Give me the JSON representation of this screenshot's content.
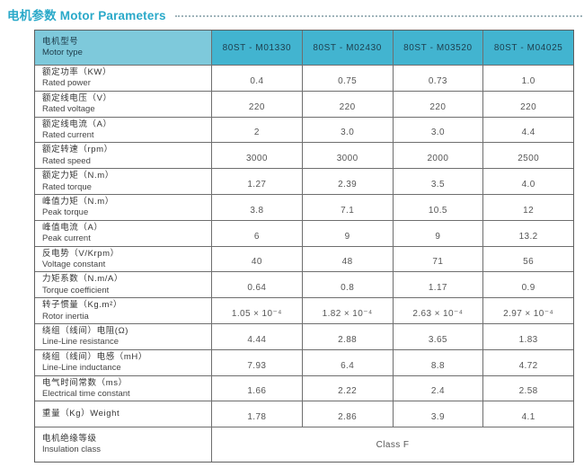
{
  "page_title": "电机参数 Motor Parameters",
  "table": {
    "header": {
      "motor_type_zh": "电机型号",
      "motor_type_en": "Motor type",
      "models": [
        "80ST - M01330",
        "80ST - M02430",
        "80ST - M03520",
        "80ST - M04025"
      ]
    },
    "rows": [
      {
        "zh": "额定功率（KW）",
        "en": "Rated power",
        "values": [
          "0.4",
          "0.75",
          "0.73",
          "1.0"
        ]
      },
      {
        "zh": "额定线电压（V）",
        "en": "Rated voltage",
        "values": [
          "220",
          "220",
          "220",
          "220"
        ]
      },
      {
        "zh": "额定线电流（A）",
        "en": "Rated current",
        "values": [
          "2",
          "3.0",
          "3.0",
          "4.4"
        ]
      },
      {
        "zh": "额定转速（rpm）",
        "en": "Rated speed",
        "values": [
          "3000",
          "3000",
          "2000",
          "2500"
        ]
      },
      {
        "zh": "额定力矩（N.m）",
        "en": "Rated torque",
        "values": [
          "1.27",
          "2.39",
          "3.5",
          "4.0"
        ]
      },
      {
        "zh": "峰值力矩（N.m）",
        "en": "Peak torque",
        "values": [
          "3.8",
          "7.1",
          "10.5",
          "12"
        ]
      },
      {
        "zh": "峰值电流（A）",
        "en": "Peak current",
        "values": [
          "6",
          "9",
          "9",
          "13.2"
        ]
      },
      {
        "zh": "反电势（V/Krpm）",
        "en": "Voltage constant",
        "values": [
          "40",
          "48",
          "71",
          "56"
        ]
      },
      {
        "zh": "力矩系数（N.m/A）",
        "en": "Torque coefficient",
        "values": [
          "0.64",
          "0.8",
          "1.17",
          "0.9"
        ]
      },
      {
        "zh": "转子惯量（Kg.m²）",
        "en": "Rotor inertia",
        "values": [
          "1.05 × 10⁻⁴",
          "1.82 × 10⁻⁴",
          "2.63 × 10⁻⁴",
          "2.97 × 10⁻⁴"
        ]
      },
      {
        "zh": "绕组（线间）电阻(Ω)",
        "en": "Line-Line resistance",
        "values": [
          "4.44",
          "2.88",
          "3.65",
          "1.83"
        ]
      },
      {
        "zh": "绕组（线间）电感（mH）",
        "en": "Line-Line inductance",
        "values": [
          "7.93",
          "6.4",
          "8.8",
          "4.72"
        ]
      },
      {
        "zh": "电气时间常数（ms）",
        "en": "Electrical time constant",
        "values": [
          "1.66",
          "2.22",
          "2.4",
          "2.58"
        ]
      },
      {
        "zh": "重量（Kg）Weight",
        "en": "",
        "values": [
          "1.78",
          "2.86",
          "3.9",
          "4.1"
        ]
      }
    ],
    "footer_row": {
      "zh": "电机绝缘等级",
      "en": "Insulation class",
      "merged_value": "Class F"
    }
  },
  "colors": {
    "title_teal": "#2aa9c9",
    "header_label_bg": "#7ec9db",
    "header_model_bg": "#42b4d0",
    "border": "#6e6e6e"
  }
}
